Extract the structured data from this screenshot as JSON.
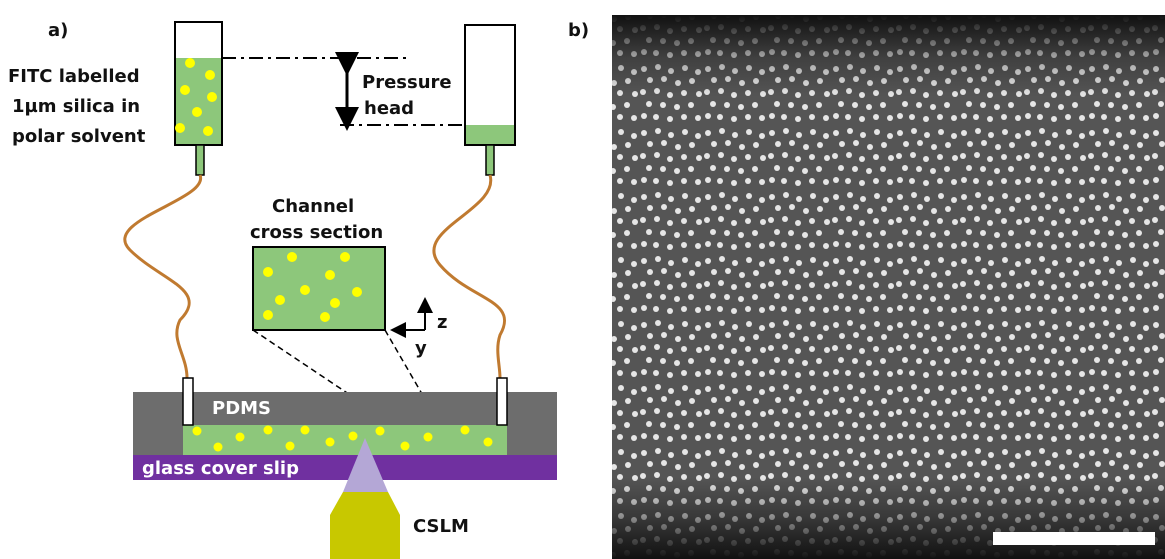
{
  "panel_a": {
    "label": "a)",
    "sample_label": [
      "FITC labelled",
      "1µm silica in",
      "polar solvent"
    ],
    "pressure_label": [
      "Pressure",
      "head"
    ],
    "inset_title": [
      "Channel",
      "cross section"
    ],
    "axes": [
      "z",
      "y"
    ],
    "pdms": "PDMS",
    "glass": "glass cover slip",
    "objective": "CSLM"
  },
  "panel_b": {
    "label": "b)"
  }
}
